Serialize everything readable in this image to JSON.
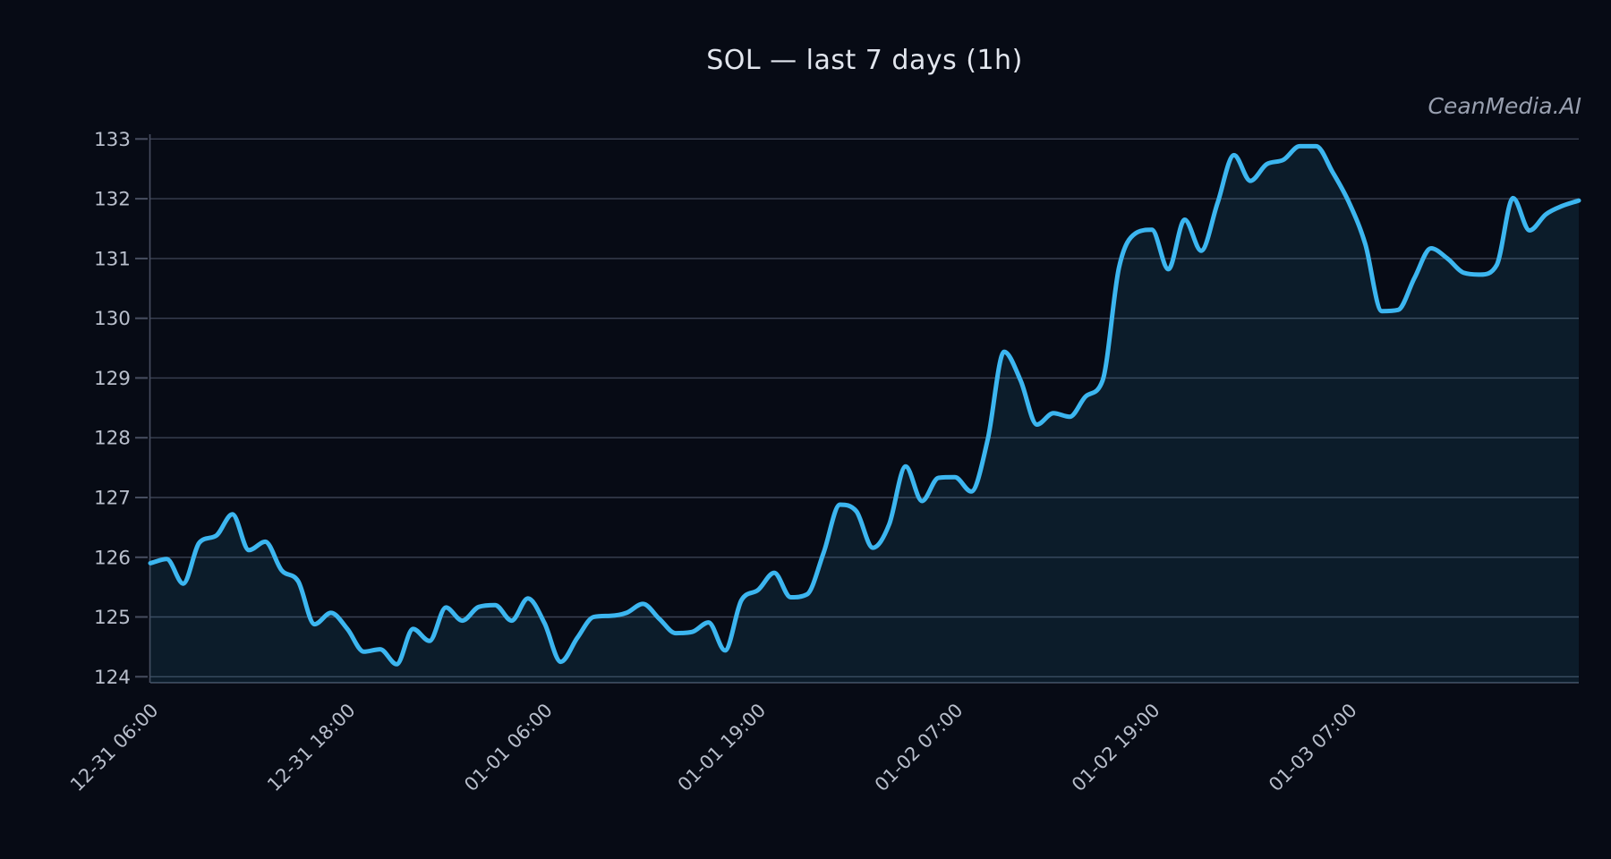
{
  "header": {
    "title": "SOL — last 7 days (1h)",
    "watermark": "CeanMedia.AI"
  },
  "colors": {
    "background": "#070b15",
    "line": "#3cb6f0",
    "area_fill": "rgba(60,182,240,0.10)",
    "grid": "#3a4152",
    "spine": "#474e60",
    "tick_label": "#b9bfcc",
    "title_text": "#e2e6ee",
    "watermark_text": "#99a0b0"
  },
  "chart_data": {
    "type": "area",
    "title": "SOL — last 7 days (1h)",
    "symbol": "SOL",
    "interval": "1h",
    "grid": true,
    "legend_position": "none",
    "ylim": [
      123.9,
      133.08
    ],
    "y_ticks": [
      124,
      125,
      126,
      127,
      128,
      129,
      130,
      131,
      132,
      133
    ],
    "x_tick_labels": [
      "12-31 06:00",
      "12-31 18:00",
      "01-01 06:00",
      "01-01 19:00",
      "01-02 07:00",
      "01-02 19:00",
      "01-03 07:00"
    ],
    "x_tick_hours": [
      0,
      12,
      24,
      37,
      49,
      61,
      73
    ],
    "hours_span": 87,
    "start_label": "12-31 06:00",
    "series": [
      {
        "name": "SOL",
        "values": [
          125.9,
          125.97,
          125.56,
          126.25,
          126.36,
          126.72,
          126.12,
          126.26,
          125.78,
          125.6,
          124.88,
          125.07,
          124.8,
          124.42,
          124.46,
          124.21,
          124.8,
          124.6,
          125.16,
          124.94,
          125.17,
          125.2,
          124.94,
          125.31,
          124.9,
          124.25,
          124.65,
          125.0,
          125.02,
          125.07,
          125.22,
          124.97,
          124.73,
          124.75,
          124.91,
          124.44,
          125.28,
          125.45,
          125.74,
          125.33,
          125.38,
          126.07,
          126.88,
          126.77,
          126.16,
          126.55,
          127.52,
          126.94,
          127.33,
          127.34,
          127.1,
          127.97,
          129.44,
          128.96,
          128.22,
          128.41,
          128.35,
          128.7,
          128.96,
          130.85,
          131.42,
          131.48,
          130.82,
          131.65,
          131.13,
          131.93,
          132.73,
          132.3,
          132.58,
          132.65,
          132.88,
          132.88,
          132.45,
          131.94,
          131.24,
          130.12,
          130.14,
          130.68,
          131.17,
          131.0,
          130.76,
          130.73,
          130.89,
          132.01,
          131.47,
          131.74,
          131.88,
          131.97
        ]
      }
    ]
  }
}
